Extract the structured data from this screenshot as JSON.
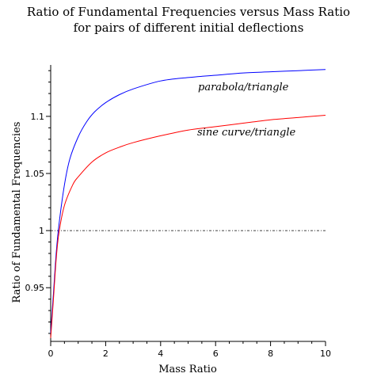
{
  "chart_data": {
    "type": "line",
    "title": [
      "Ratio of Fundamental Frequencies versus Mass Ratio",
      "for pairs of different initial deflections"
    ],
    "xlabel": "Mass Ratio",
    "ylabel": "Ratio of Fundamental Frequencies",
    "xlim": [
      0,
      10
    ],
    "ylim": [
      0.903,
      1.145
    ],
    "x_ticks": [
      0,
      2,
      4,
      6,
      8,
      10
    ],
    "x_tick_labels": [
      "0",
      "2",
      "4",
      "6",
      "8",
      "10"
    ],
    "y_ticks": [
      0.95,
      1,
      1.05,
      1.1
    ],
    "y_tick_labels": [
      "0.95",
      "1",
      "1.05",
      "1.1"
    ],
    "grid": false,
    "series": [
      {
        "name": "parabola/triangle",
        "color": "#0000ff",
        "points": [
          [
            0,
            0.91
          ],
          [
            0.1,
            0.945
          ],
          [
            0.2,
            0.98
          ],
          [
            0.3,
            1.005
          ],
          [
            0.5,
            1.04
          ],
          [
            0.7,
            1.063
          ],
          [
            1.0,
            1.082
          ],
          [
            1.3,
            1.095
          ],
          [
            1.6,
            1.104
          ],
          [
            2.0,
            1.112
          ],
          [
            2.5,
            1.119
          ],
          [
            3.0,
            1.124
          ],
          [
            4.0,
            1.131
          ],
          [
            5.0,
            1.134
          ],
          [
            6.0,
            1.136
          ],
          [
            7.0,
            1.138
          ],
          [
            8.0,
            1.139
          ],
          [
            9.0,
            1.14
          ],
          [
            10.0,
            1.141
          ]
        ]
      },
      {
        "name": "sine curve/triangle",
        "color": "#ff0000",
        "points": [
          [
            0,
            0.906
          ],
          [
            0.1,
            0.94
          ],
          [
            0.2,
            0.975
          ],
          [
            0.3,
            0.998
          ],
          [
            0.5,
            1.022
          ],
          [
            0.8,
            1.04
          ],
          [
            1.0,
            1.047
          ],
          [
            1.5,
            1.06
          ],
          [
            2.0,
            1.068
          ],
          [
            2.5,
            1.073
          ],
          [
            3.0,
            1.077
          ],
          [
            4.0,
            1.083
          ],
          [
            5.0,
            1.088
          ],
          [
            6.0,
            1.091
          ],
          [
            7.0,
            1.094
          ],
          [
            8.0,
            1.097
          ],
          [
            9.0,
            1.099
          ],
          [
            10.0,
            1.101
          ]
        ]
      }
    ],
    "reference_line": {
      "y": 1,
      "style": "dash-dot",
      "color": "#000000"
    }
  }
}
